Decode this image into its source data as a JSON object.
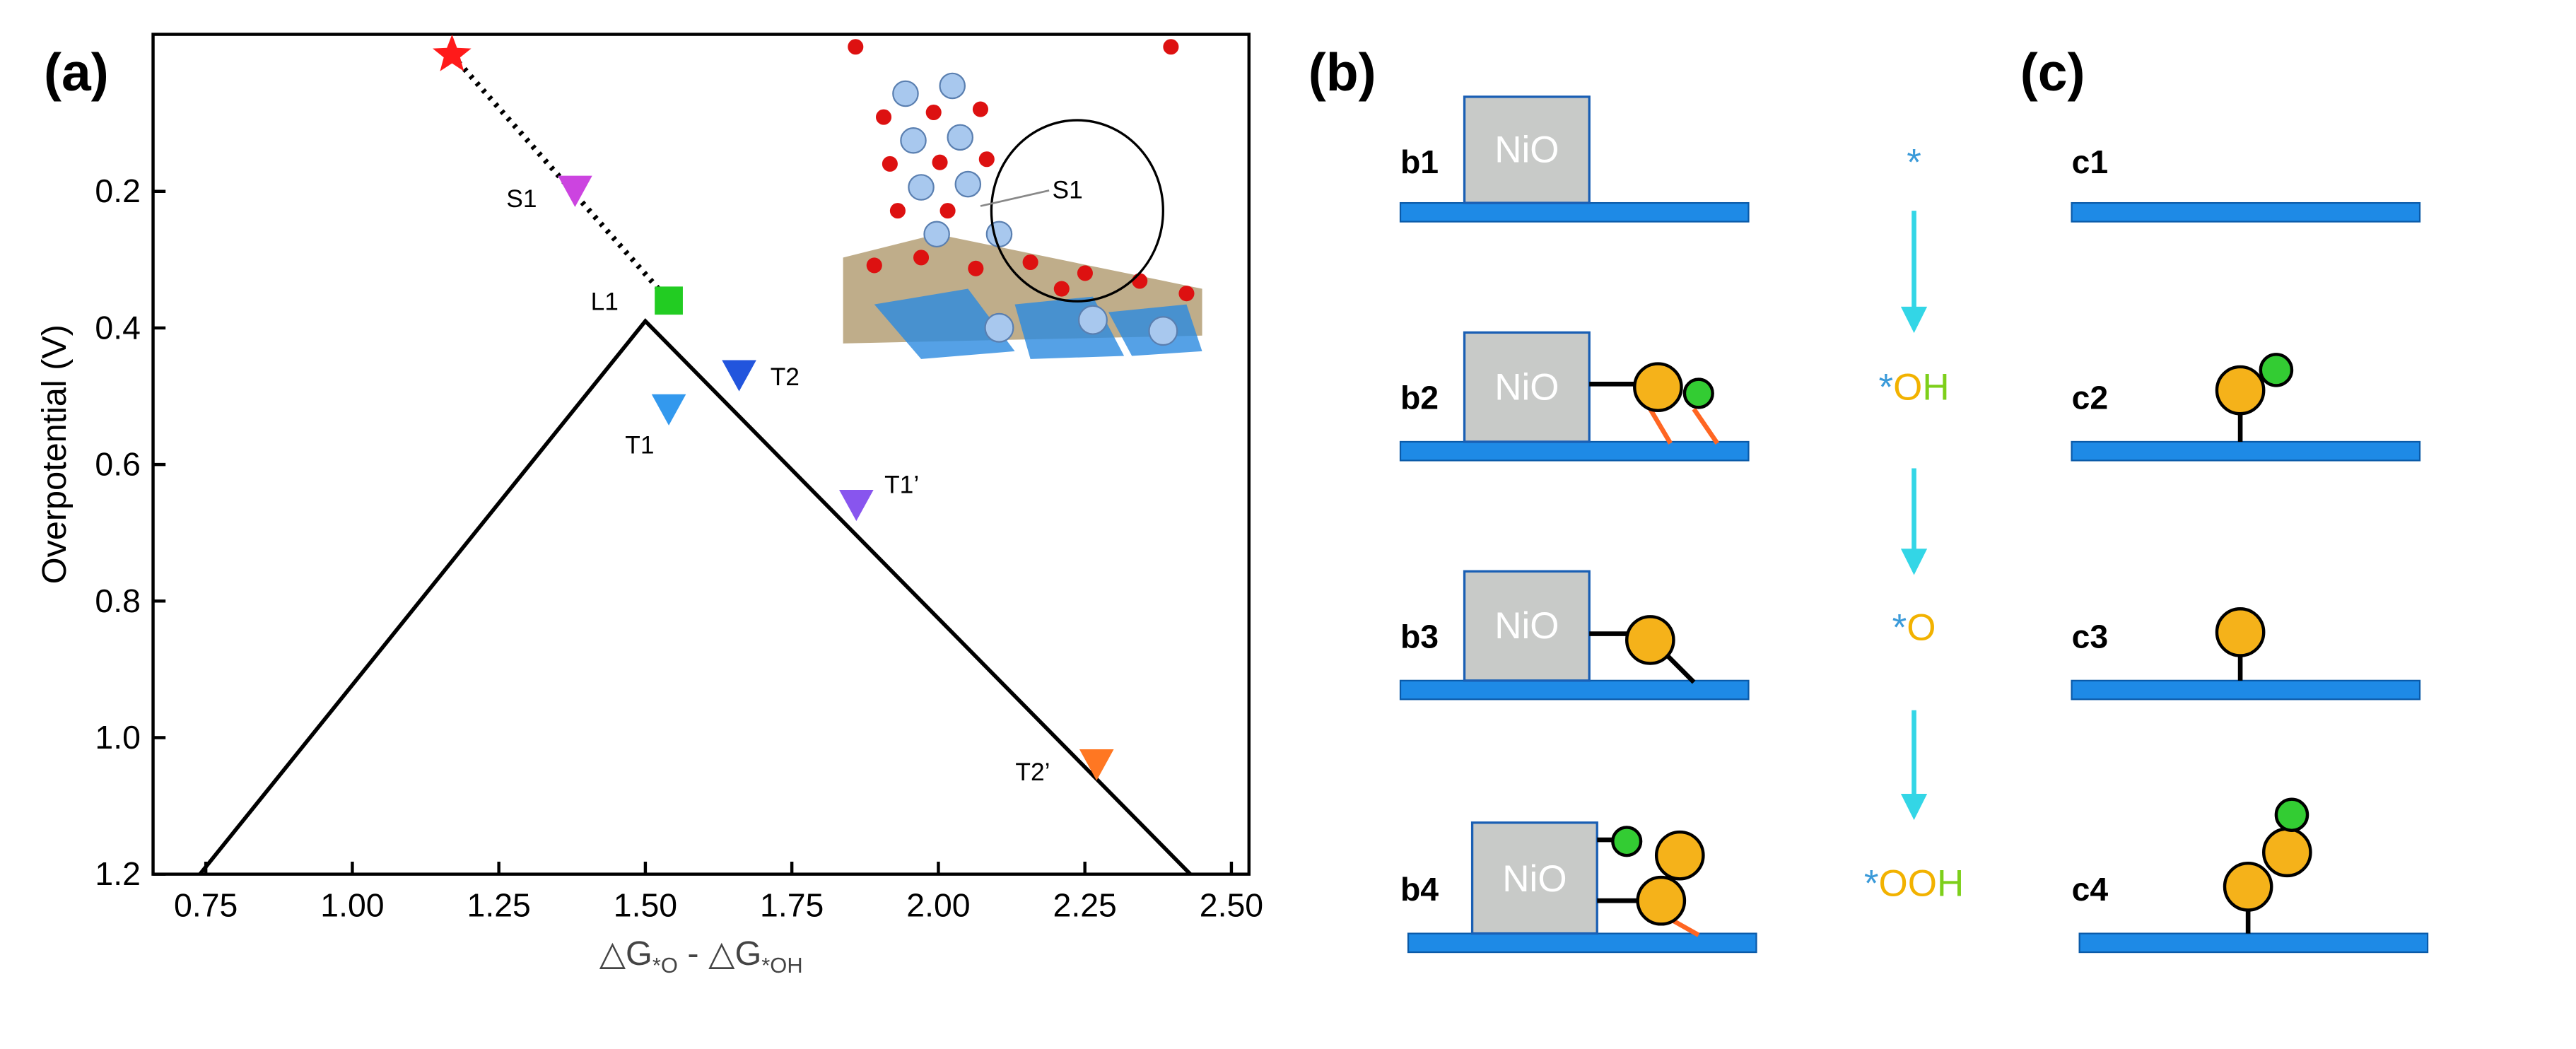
{
  "chart_data": {
    "type": "scatter",
    "panel_label": "(a)",
    "y_label": "Overpotential (V)",
    "x_label": [
      "△G",
      "*O",
      " - △G",
      "*OH"
    ],
    "xlim": [
      0.66,
      2.53
    ],
    "ylim": [
      -0.03,
      1.2
    ],
    "y_reversed": true,
    "xticks": [
      0.75,
      {
        "value": 1,
        "label": "1.00"
      },
      1.25,
      {
        "value": 1.5,
        "label": "1.50"
      },
      1.75,
      {
        "value": 2,
        "label": "2.00"
      },
      2.25,
      {
        "value": 2.5,
        "label": "2.50"
      }
    ],
    "yticks": [
      0.2,
      0.4,
      0.6,
      0.8,
      {
        "value": 1,
        "label": "1.0"
      },
      1.2
    ],
    "series": [
      {
        "x": [
          1.17
        ],
        "values": [
          0
        ],
        "color": "#ff1a1a",
        "marker": "star"
      },
      {
        "name": "S1",
        "x": [
          1.38
        ],
        "values": [
          0.2
        ],
        "color": "#cc44e0",
        "marker": "triangle-down"
      },
      {
        "name": "L1",
        "x": [
          1.54
        ],
        "values": [
          0.36
        ],
        "color": "#22cc22",
        "marker": "square"
      },
      {
        "name": "T1",
        "x": [
          1.54
        ],
        "values": [
          0.52
        ],
        "color": "#3399ee",
        "marker": "triangle-down"
      },
      {
        "name": "T2",
        "x": [
          1.66
        ],
        "values": [
          0.47
        ],
        "color": "#2255dd",
        "marker": "triangle-down"
      },
      {
        "name": "T1’",
        "x": [
          1.86
        ],
        "values": [
          0.66
        ],
        "color": "#8855ee",
        "marker": "triangle-down"
      },
      {
        "name": "T2’",
        "x": [
          2.27
        ],
        "values": [
          1.04
        ],
        "color": "#ff7722",
        "marker": "triangle-down"
      }
    ],
    "volcano": {
      "x": [
        0.74,
        1.5,
        2.43
      ],
      "y": [
        1.2,
        0.39,
        1.2
      ],
      "color": "#000000"
    },
    "inset_label": "S1"
  },
  "panel_b": {
    "panel_label": "(b)",
    "rows": [
      "b1",
      "b2",
      "b3",
      "b4"
    ],
    "box_label": [
      "NiO",
      "NiO",
      "NiO",
      "NiO"
    ]
  },
  "species": [
    [
      {
        "text": "*",
        "color": "#3a9ad9"
      }
    ],
    [
      {
        "text": "*",
        "color": "#3a9ad9"
      },
      {
        "text": "O",
        "color": "#f2b200"
      },
      {
        "text": "H",
        "color": "#7dcf1a"
      }
    ],
    [
      {
        "text": "*",
        "color": "#3a9ad9"
      },
      {
        "text": "O",
        "color": "#f2b200"
      }
    ],
    [
      {
        "text": "*",
        "color": "#3a9ad9"
      },
      {
        "text": "OO",
        "color": "#f2b200"
      },
      {
        "text": "H",
        "color": "#7dcf1a"
      }
    ]
  ],
  "panel_c": {
    "panel_label": "(c)",
    "rows": [
      "c1",
      "c2",
      "c3",
      "c4"
    ]
  }
}
